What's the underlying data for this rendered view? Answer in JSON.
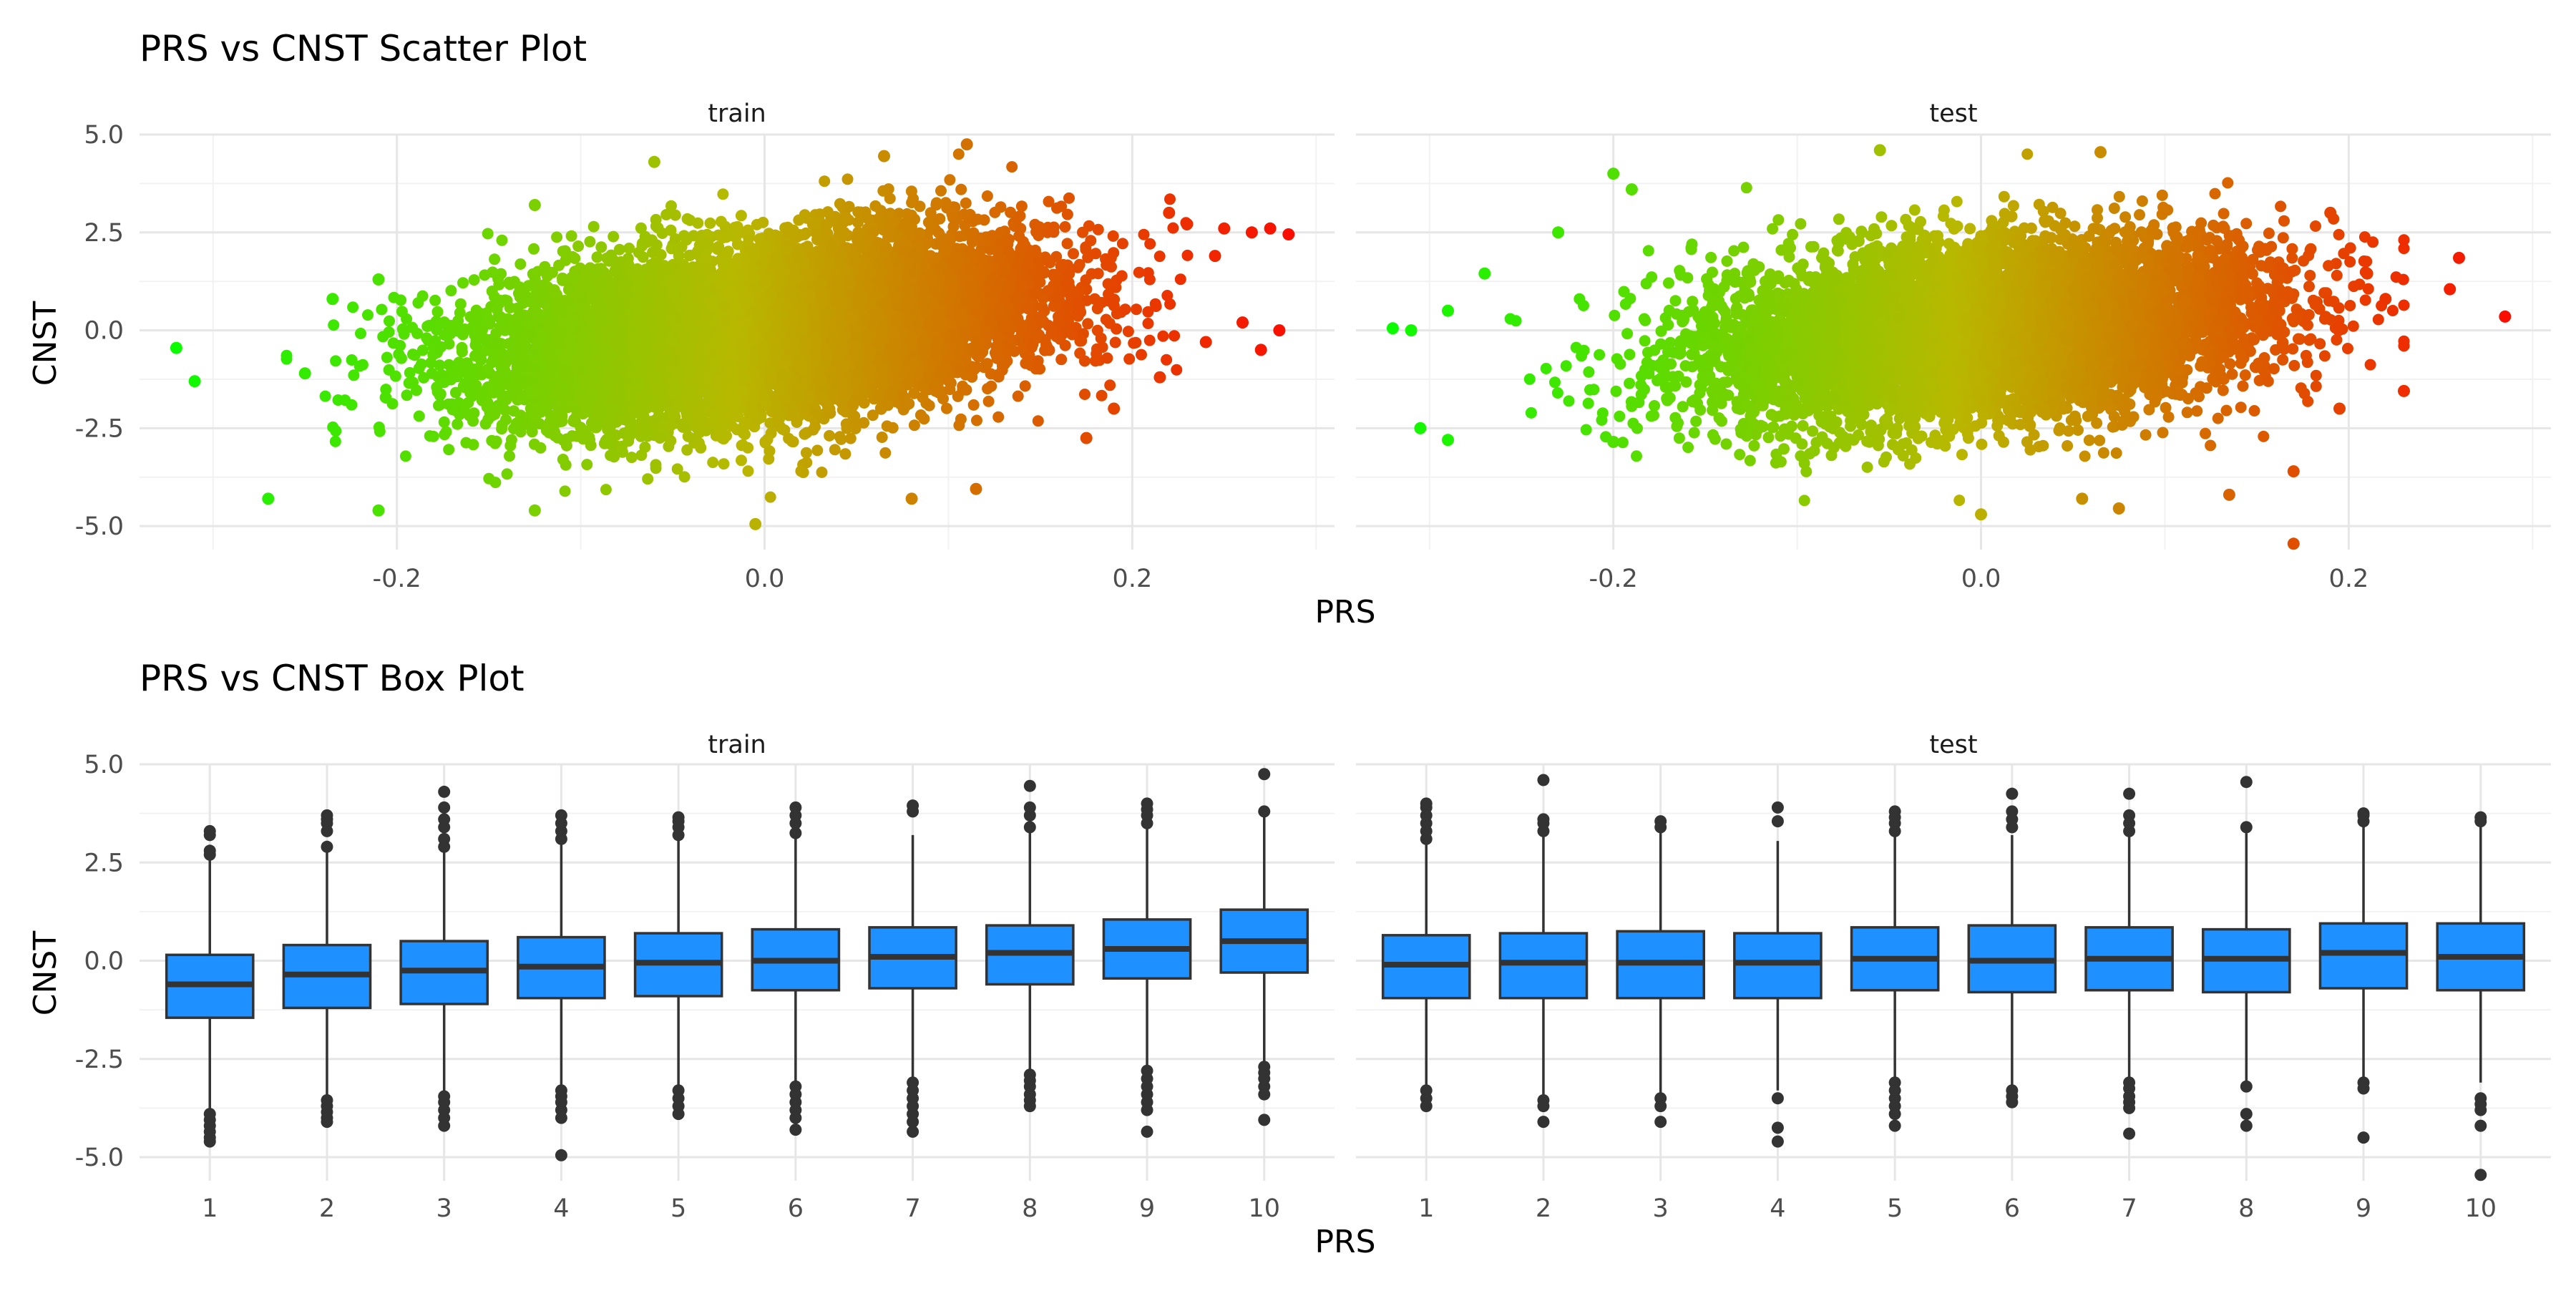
{
  "chart_data": [
    {
      "type": "scatter",
      "title": "PRS vs CNST Scatter Plot",
      "xlabel": "PRS",
      "ylabel": "CNST",
      "xlim": [
        -0.34,
        0.31
      ],
      "ylim": [
        -5.6,
        5.0
      ],
      "x_ticks": [
        "-0.2",
        "0.0",
        "0.2"
      ],
      "y_ticks": [
        "5.0",
        "2.5",
        "0.0",
        "-2.5",
        "-5.0"
      ],
      "grid": true,
      "legend": "none",
      "color_scale": {
        "low": "#00ff00",
        "mid": "#b8b800",
        "high": "#ff0000",
        "basis": "PRS"
      },
      "facets": [
        {
          "name": "train",
          "cloud": {
            "x_mean": 0.0,
            "x_sd": 0.075,
            "y_intercept": 0.0,
            "y_slope": 5.0,
            "y_sd": 1.1,
            "n": 9000
          },
          "points": [
            {
              "x": -0.32,
              "y": -0.45
            },
            {
              "x": -0.31,
              "y": -1.3
            },
            {
              "x": -0.27,
              "y": -4.3
            },
            {
              "x": -0.21,
              "y": -4.6
            },
            {
              "x": -0.25,
              "y": -1.1
            },
            {
              "x": -0.235,
              "y": 0.8
            },
            {
              "x": -0.21,
              "y": 1.3
            },
            {
              "x": -0.125,
              "y": -4.6
            },
            {
              "x": -0.125,
              "y": 3.2
            },
            {
              "x": -0.06,
              "y": 4.3
            },
            {
              "x": -0.005,
              "y": -4.95
            },
            {
              "x": 0.065,
              "y": 4.45
            },
            {
              "x": 0.11,
              "y": 4.75
            },
            {
              "x": 0.08,
              "y": -4.3
            },
            {
              "x": 0.115,
              "y": -4.05
            },
            {
              "x": 0.265,
              "y": 2.5
            },
            {
              "x": 0.285,
              "y": 2.45
            },
            {
              "x": 0.275,
              "y": 2.6
            },
            {
              "x": 0.245,
              "y": 1.9
            },
            {
              "x": 0.26,
              "y": 0.2
            },
            {
              "x": 0.27,
              "y": -0.5
            },
            {
              "x": 0.28,
              "y": 0.0
            },
            {
              "x": 0.24,
              "y": -0.3
            },
            {
              "x": 0.215,
              "y": -1.2
            },
            {
              "x": 0.19,
              "y": -2.0
            },
            {
              "x": 0.175,
              "y": -2.75
            },
            {
              "x": 0.22,
              "y": 3.0
            },
            {
              "x": 0.25,
              "y": 2.6
            }
          ]
        },
        {
          "name": "test",
          "cloud": {
            "x_mean": 0.0,
            "x_sd": 0.075,
            "y_intercept": 0.0,
            "y_slope": 4.0,
            "y_sd": 1.1,
            "n": 7000
          },
          "points": [
            {
              "x": -0.32,
              "y": 0.05
            },
            {
              "x": -0.31,
              "y": 0.0
            },
            {
              "x": -0.305,
              "y": -2.5
            },
            {
              "x": -0.29,
              "y": -2.8
            },
            {
              "x": -0.29,
              "y": 0.5
            },
            {
              "x": -0.27,
              "y": 1.45
            },
            {
              "x": -0.23,
              "y": 2.5
            },
            {
              "x": -0.2,
              "y": 4.0
            },
            {
              "x": -0.19,
              "y": 3.6
            },
            {
              "x": -0.2,
              "y": -2.85
            },
            {
              "x": -0.055,
              "y": 4.6
            },
            {
              "x": 0.065,
              "y": 4.55
            },
            {
              "x": 0.0,
              "y": -4.7
            },
            {
              "x": 0.055,
              "y": -4.3
            },
            {
              "x": 0.075,
              "y": -4.55
            },
            {
              "x": 0.135,
              "y": -4.2
            },
            {
              "x": 0.17,
              "y": -5.45
            },
            {
              "x": 0.17,
              "y": -3.6
            },
            {
              "x": 0.26,
              "y": 1.85
            },
            {
              "x": 0.255,
              "y": 1.05
            },
            {
              "x": 0.285,
              "y": 0.35
            },
            {
              "x": 0.23,
              "y": -1.55
            },
            {
              "x": 0.22,
              "y": 0.8
            },
            {
              "x": 0.21,
              "y": 1.45
            },
            {
              "x": 0.19,
              "y": 3.0
            },
            {
              "x": 0.195,
              "y": -2.0
            }
          ]
        }
      ]
    },
    {
      "type": "box",
      "title": "PRS vs CNST Box Plot",
      "xlabel": "PRS",
      "ylabel": "CNST",
      "categories": [
        "1",
        "2",
        "3",
        "4",
        "5",
        "6",
        "7",
        "8",
        "9",
        "10"
      ],
      "ylim": [
        -5.6,
        5.0
      ],
      "y_ticks": [
        "5.0",
        "2.5",
        "0.0",
        "-2.5",
        "-5.0"
      ],
      "grid": true,
      "box_color": "#1e90ff",
      "outline_color": "#333333",
      "facets": [
        {
          "name": "train",
          "boxes": [
            {
              "q1": -1.45,
              "median": -0.6,
              "q3": 0.15,
              "whisker_low": -3.8,
              "whisker_high": 2.55,
              "outliers": [
                -3.9,
                -4.05,
                -4.2,
                -4.35,
                -4.5,
                -4.6,
                2.7,
                2.8,
                3.2,
                3.3
              ]
            },
            {
              "q1": -1.2,
              "median": -0.35,
              "q3": 0.4,
              "whisker_low": -3.5,
              "whisker_high": 2.8,
              "outliers": [
                -3.55,
                -3.7,
                -3.85,
                -4.0,
                -4.1,
                2.9,
                3.3,
                3.5,
                3.6,
                3.7
              ]
            },
            {
              "q1": -1.1,
              "median": -0.25,
              "q3": 0.5,
              "whisker_low": -3.4,
              "whisker_high": 2.8,
              "outliers": [
                -3.45,
                -3.6,
                -3.8,
                -4.0,
                -4.2,
                2.9,
                3.1,
                3.4,
                3.6,
                3.9,
                4.3
              ]
            },
            {
              "q1": -0.95,
              "median": -0.15,
              "q3": 0.6,
              "whisker_low": -3.2,
              "whisker_high": 3.05,
              "outliers": [
                -3.3,
                -3.45,
                -3.6,
                -3.8,
                -4.0,
                -4.95,
                3.1,
                3.3,
                3.5,
                3.7
              ]
            },
            {
              "q1": -0.9,
              "median": -0.05,
              "q3": 0.7,
              "whisker_low": -3.2,
              "whisker_high": 3.1,
              "outliers": [
                -3.3,
                -3.5,
                -3.7,
                -3.9,
                3.2,
                3.4,
                3.55,
                3.65
              ]
            },
            {
              "q1": -0.75,
              "median": 0.0,
              "q3": 0.8,
              "whisker_low": -3.1,
              "whisker_high": 3.15,
              "outliers": [
                -3.2,
                -3.4,
                -3.6,
                -3.8,
                -4.0,
                -4.3,
                3.25,
                3.5,
                3.7,
                3.9
              ]
            },
            {
              "q1": -0.7,
              "median": 0.1,
              "q3": 0.85,
              "whisker_low": -3.0,
              "whisker_high": 3.2,
              "outliers": [
                -3.1,
                -3.3,
                -3.5,
                -3.7,
                -3.9,
                -4.1,
                -4.35,
                3.8,
                3.95
              ]
            },
            {
              "q1": -0.6,
              "median": 0.2,
              "q3": 0.9,
              "whisker_low": -2.85,
              "whisker_high": 3.3,
              "outliers": [
                -2.9,
                -3.05,
                -3.2,
                -3.4,
                -3.55,
                -3.7,
                3.4,
                3.7,
                3.9,
                4.45
              ]
            },
            {
              "q1": -0.45,
              "median": 0.3,
              "q3": 1.05,
              "whisker_low": -2.7,
              "whisker_high": 3.4,
              "outliers": [
                -2.8,
                -3.0,
                -3.2,
                -3.4,
                -3.6,
                -3.8,
                -4.35,
                3.5,
                3.7,
                3.85,
                4.0
              ]
            },
            {
              "q1": -0.3,
              "median": 0.5,
              "q3": 1.3,
              "whisker_low": -2.6,
              "whisker_high": 3.7,
              "outliers": [
                -2.7,
                -2.85,
                -3.0,
                -3.2,
                -3.4,
                -4.05,
                3.8,
                4.75
              ]
            }
          ]
        },
        {
          "name": "test",
          "boxes": [
            {
              "q1": -0.95,
              "median": -0.1,
              "q3": 0.65,
              "whisker_low": -3.2,
              "whisker_high": 3.0,
              "outliers": [
                -3.3,
                -3.5,
                -3.7,
                3.1,
                3.3,
                3.5,
                3.7,
                3.9,
                4.0
              ]
            },
            {
              "q1": -0.95,
              "median": -0.05,
              "q3": 0.7,
              "whisker_low": -3.4,
              "whisker_high": 3.2,
              "outliers": [
                -3.55,
                -3.7,
                -4.1,
                3.3,
                3.5,
                3.6,
                4.6
              ]
            },
            {
              "q1": -0.95,
              "median": -0.05,
              "q3": 0.75,
              "whisker_low": -3.4,
              "whisker_high": 3.3,
              "outliers": [
                -3.5,
                -3.7,
                -4.1,
                3.4,
                3.55
              ]
            },
            {
              "q1": -0.95,
              "median": -0.05,
              "q3": 0.7,
              "whisker_low": -3.3,
              "whisker_high": 3.05,
              "outliers": [
                -3.5,
                -4.25,
                -4.6,
                3.55,
                3.9
              ]
            },
            {
              "q1": -0.75,
              "median": 0.05,
              "q3": 0.85,
              "whisker_low": -3.0,
              "whisker_high": 3.2,
              "outliers": [
                -3.1,
                -3.3,
                -3.5,
                -3.7,
                -3.9,
                -4.2,
                3.3,
                3.5,
                3.65,
                3.8
              ]
            },
            {
              "q1": -0.8,
              "median": 0.0,
              "q3": 0.9,
              "whisker_low": -3.2,
              "whisker_high": 3.2,
              "outliers": [
                -3.3,
                -3.45,
                -3.6,
                3.4,
                3.6,
                3.8,
                4.25
              ]
            },
            {
              "q1": -0.75,
              "median": 0.05,
              "q3": 0.85,
              "whisker_low": -3.0,
              "whisker_high": 3.2,
              "outliers": [
                -3.1,
                -3.25,
                -3.45,
                -3.6,
                -3.75,
                -4.4,
                3.3,
                3.5,
                3.7,
                4.25
              ]
            },
            {
              "q1": -0.8,
              "median": 0.05,
              "q3": 0.8,
              "whisker_low": -3.1,
              "whisker_high": 3.25,
              "outliers": [
                -3.2,
                -3.9,
                -4.2,
                3.4,
                4.55
              ]
            },
            {
              "q1": -0.7,
              "median": 0.2,
              "q3": 0.95,
              "whisker_low": -3.0,
              "whisker_high": 3.4,
              "outliers": [
                -3.1,
                -3.25,
                -4.5,
                3.55,
                3.7,
                3.75
              ]
            },
            {
              "q1": -0.75,
              "median": 0.1,
              "q3": 0.95,
              "whisker_low": -3.1,
              "whisker_high": 3.45,
              "outliers": [
                -3.5,
                -3.65,
                -3.8,
                -4.2,
                -5.45,
                3.55,
                3.65
              ]
            }
          ]
        }
      ]
    }
  ]
}
